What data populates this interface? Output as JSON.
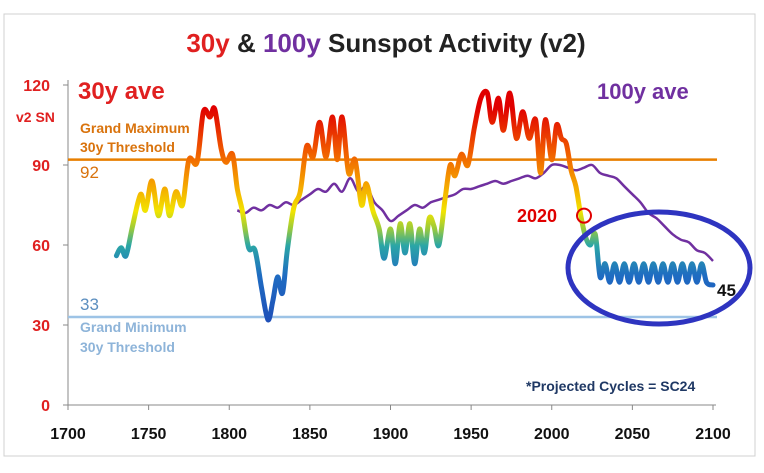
{
  "chart_data": {
    "type": "line",
    "title": {
      "part1": "30y",
      "part2": " & ",
      "part3": "100y",
      "part4": " Sunspot Activity (v2)"
    },
    "ylabel": "v2 SN",
    "xlim": [
      1700,
      2100
    ],
    "ylim": [
      0,
      120
    ],
    "x_ticks": [
      1700,
      1750,
      1800,
      1850,
      1900,
      1950,
      2000,
      2050,
      2100
    ],
    "y_ticks": [
      0,
      30,
      60,
      90,
      120
    ],
    "grid": false,
    "colors": {
      "title_red": "#e02020",
      "title_purple": "#7030a0",
      "title_dark": "#222222",
      "y_tick_label": "#e02020",
      "grand_max_line": "#e87f00",
      "grand_min_line": "#9dc3e6",
      "grand_min_text": "#8eb4d9",
      "grand_min_value": "#5b8ebf",
      "avg100_line": "#7030a0",
      "projection_ellipse": "#2e34c0",
      "marker_2020": "#e00000"
    },
    "legend": {
      "series30_label": "30y ave",
      "series100_label": "100y ave"
    },
    "annotations": {
      "grand_max_label_line1": "Grand Maximum",
      "grand_max_label_line2": "30y Threshold",
      "grand_max_value_label": "92",
      "grand_min_label_line1": "Grand Minimum",
      "grand_min_label_line2": "30y Threshold",
      "grand_min_value_label": "33",
      "marker_label": "2020",
      "end_value_label": "45",
      "footnote": "*Projected Cycles = SC24"
    },
    "thresholds": {
      "grand_max": 92,
      "grand_min": 33
    },
    "marker": {
      "x": 2020,
      "y": 71
    },
    "series": [
      {
        "name": "30y ave",
        "x": [
          1730,
          1733,
          1736,
          1740,
          1745,
          1748,
          1752,
          1756,
          1760,
          1763,
          1767,
          1771,
          1775,
          1780,
          1784,
          1788,
          1791,
          1795,
          1798,
          1802,
          1805,
          1808,
          1812,
          1816,
          1820,
          1824,
          1827,
          1830,
          1833,
          1836,
          1840,
          1844,
          1848,
          1852,
          1856,
          1860,
          1864,
          1867,
          1870,
          1874,
          1878,
          1882,
          1885,
          1889,
          1893,
          1896,
          1900,
          1903,
          1906,
          1909,
          1912,
          1915,
          1918,
          1921,
          1924,
          1927,
          1930,
          1934,
          1937,
          1940,
          1944,
          1948,
          1952,
          1956,
          1960,
          1963,
          1967,
          1970,
          1974,
          1978,
          1982,
          1986,
          1990,
          1993,
          1996,
          2000,
          2003,
          2006,
          2009,
          2012,
          2015,
          2018,
          2021,
          2024,
          2027,
          2030,
          2033,
          2036,
          2039,
          2042,
          2045,
          2048,
          2051,
          2054,
          2057,
          2060,
          2063,
          2066,
          2069,
          2072,
          2075,
          2078,
          2081,
          2084,
          2087,
          2090,
          2093,
          2096,
          2100
        ],
        "y": [
          56,
          59,
          56,
          67,
          79,
          73,
          84,
          71,
          81,
          71,
          80,
          75,
          92,
          91,
          110,
          108,
          111,
          96,
          91,
          94,
          81,
          73,
          59,
          58,
          44,
          32,
          39,
          48,
          42,
          58,
          74,
          80,
          97,
          93,
          106,
          93,
          108,
          92,
          108,
          87,
          92,
          75,
          83,
          73,
          66,
          55,
          66,
          53,
          68,
          57,
          68,
          53,
          66,
          57,
          70,
          67,
          60,
          78,
          90,
          86,
          94,
          90,
          104,
          115,
          117,
          106,
          115,
          103,
          117,
          100,
          110,
          100,
          107,
          87,
          107,
          92,
          105,
          100,
          98,
          88,
          82,
          71,
          63,
          60,
          64,
          48,
          53,
          46,
          53,
          46,
          53,
          46,
          53,
          46,
          53,
          46,
          53,
          46,
          53,
          46,
          53,
          46,
          53,
          46,
          53,
          46,
          53,
          46,
          45
        ]
      },
      {
        "name": "100y ave",
        "x": [
          1805,
          1810,
          1815,
          1820,
          1825,
          1830,
          1835,
          1840,
          1845,
          1850,
          1855,
          1860,
          1865,
          1870,
          1875,
          1880,
          1885,
          1890,
          1895,
          1900,
          1905,
          1910,
          1915,
          1920,
          1925,
          1930,
          1935,
          1940,
          1945,
          1950,
          1955,
          1960,
          1965,
          1970,
          1975,
          1980,
          1985,
          1990,
          1995,
          2000,
          2005,
          2010,
          2015,
          2020,
          2025,
          2030,
          2035,
          2040,
          2045,
          2050,
          2055,
          2060,
          2065,
          2070,
          2075,
          2080,
          2085,
          2090,
          2095,
          2100
        ],
        "y": [
          73,
          72,
          74,
          73,
          75,
          74,
          76,
          75,
          77,
          79,
          81,
          80,
          83,
          80,
          85,
          80,
          82,
          76,
          73,
          69,
          71,
          73,
          75,
          74,
          76,
          77,
          78,
          79,
          81,
          81,
          82,
          83,
          84,
          83,
          84,
          85,
          86,
          85,
          87,
          90,
          90,
          89,
          88,
          89,
          90,
          87,
          86,
          85,
          82,
          79,
          76,
          72,
          70,
          67,
          64,
          62,
          61,
          58,
          57,
          54
        ]
      }
    ]
  }
}
